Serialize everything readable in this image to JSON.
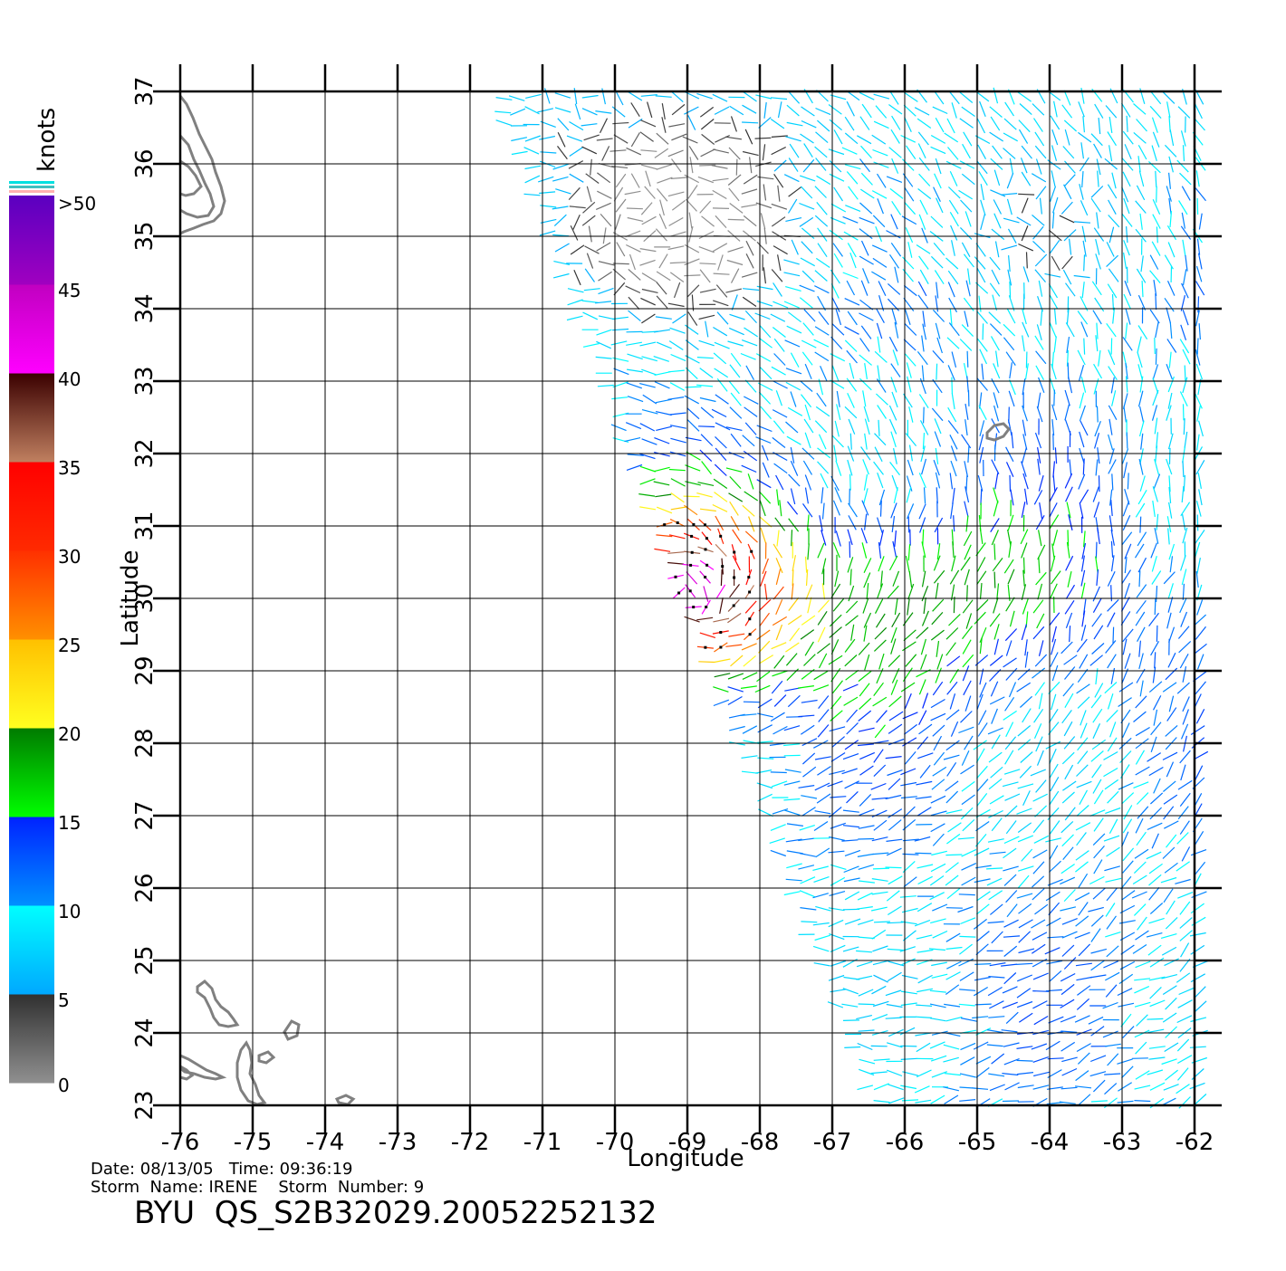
{
  "map": {
    "xlabel": "Longitude",
    "ylabel": "Latitude",
    "lon_range": [
      -76,
      -62
    ],
    "lat_range": [
      23,
      37
    ],
    "lon_ticks": [
      "-76",
      "-75",
      "-74",
      "-73",
      "-72",
      "-71",
      "-70",
      "-69",
      "-68",
      "-67",
      "-66",
      "-65",
      "-64",
      "-63",
      "-62"
    ],
    "lat_ticks": [
      "23",
      "24",
      "25",
      "26",
      "27",
      "28",
      "29",
      "30",
      "31",
      "32",
      "33",
      "34",
      "35",
      "36",
      "37"
    ],
    "grid": true,
    "land_color": "#808080"
  },
  "legend": {
    "unit": "knots",
    "labels": [
      {
        "text": ">50",
        "value": 50
      },
      {
        "text": "45",
        "value": 45
      },
      {
        "text": "40",
        "value": 40
      },
      {
        "text": "35",
        "value": 35
      },
      {
        "text": "30",
        "value": 30
      },
      {
        "text": "25",
        "value": 25
      },
      {
        "text": "20",
        "value": 20
      },
      {
        "text": "15",
        "value": 15
      },
      {
        "text": "10",
        "value": 10
      },
      {
        "text": "5",
        "value": 5
      },
      {
        "text": "0",
        "value": 0
      }
    ],
    "bands": [
      {
        "from": 0,
        "to": 5,
        "top": "#303030",
        "bottom": "#909090"
      },
      {
        "from": 5,
        "to": 10,
        "top": "#00ffff",
        "bottom": "#00a8ff"
      },
      {
        "from": 10,
        "to": 15,
        "top": "#0022ff",
        "bottom": "#0090ff"
      },
      {
        "from": 15,
        "to": 20,
        "top": "#007a00",
        "bottom": "#00ff00"
      },
      {
        "from": 20,
        "to": 25,
        "top": "#ffc000",
        "bottom": "#ffff20"
      },
      {
        "from": 25,
        "to": 30,
        "top": "#ff3000",
        "bottom": "#ff9000"
      },
      {
        "from": 30,
        "to": 35,
        "top": "#ff0000",
        "bottom": "#ff2a00"
      },
      {
        "from": 35,
        "to": 40,
        "top": "#3a0000",
        "bottom": "#c08060"
      },
      {
        "from": 40,
        "to": 45,
        "top": "#c000c0",
        "bottom": "#ff00ff"
      },
      {
        "from": 45,
        "to": 50,
        "top": "#5a00c0",
        "bottom": "#a000c0"
      }
    ]
  },
  "info": {
    "date_line": "Date: 08/13/05   Time: 09:36:19",
    "storm_line": "Storm  Name: IRENE    Storm  Number: 9",
    "product_title": "BYU  QS_S2B32029.20052252132"
  }
}
